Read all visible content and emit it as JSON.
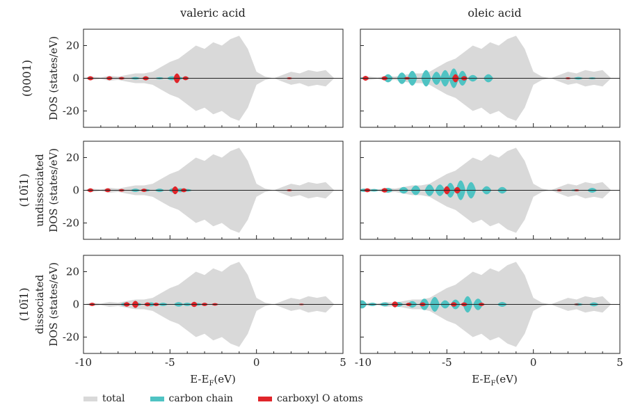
{
  "chart_data": {
    "type": "area",
    "columns": [
      "valeric acid",
      "oleic acid"
    ],
    "rows": [
      {
        "label": "(0001)",
        "label2": ""
      },
      {
        "label": "(10ī1)",
        "label2": "undissociated"
      },
      {
        "label": "(10ī1)",
        "label2": "dissociated"
      }
    ],
    "ylabel": "DOS (states/eV)",
    "xlabel": "E-E",
    "xlabel_sub": "F",
    "xlabel_unit": "(eV)",
    "xlim": [
      -10,
      5
    ],
    "ylim": [
      -30,
      30
    ],
    "xticks": [
      "-10",
      "-5",
      "0",
      "5"
    ],
    "yticks": [
      "20",
      "0",
      "-20"
    ],
    "legend_placement": "bottom",
    "series": [
      {
        "name": "total",
        "color": "#d9d9d9"
      },
      {
        "name": "carbon chain",
        "color": "#4fc3c3"
      },
      {
        "name": "carboxyl O atoms",
        "color": "#e0252a"
      }
    ],
    "total_dos": {
      "x": [
        -10,
        -9.5,
        -9,
        -8.5,
        -8,
        -7.5,
        -7,
        -6.5,
        -6,
        -5.5,
        -5,
        -4.5,
        -4,
        -3.5,
        -3,
        -2.5,
        -2,
        -1.5,
        -1,
        -0.5,
        0,
        0.5,
        1,
        1.5,
        2,
        2.5,
        3,
        3.5,
        4,
        4.5
      ],
      "y": [
        0,
        1,
        0.5,
        1.5,
        1,
        2,
        3,
        3,
        4,
        7,
        10,
        12,
        16,
        20,
        18,
        22,
        20,
        24,
        26,
        18,
        4,
        1,
        0,
        2,
        4,
        3,
        5,
        4,
        5,
        0
      ]
    },
    "panels": [
      {
        "col": 0,
        "row": 0,
        "carbon": [
          [
            -9.6,
            0.5
          ],
          [
            -7,
            0.8
          ],
          [
            -6.4,
            0.6
          ],
          [
            -5.6,
            0.7
          ],
          [
            -4.9,
            1.2
          ],
          [
            -4.5,
            1
          ],
          [
            -4.1,
            0.6
          ]
        ],
        "carboxyl": [
          [
            -9.6,
            1.3
          ],
          [
            -8.5,
            1.2
          ],
          [
            -7.8,
            0.8
          ],
          [
            -6.4,
            1.3
          ],
          [
            -4.6,
            3
          ],
          [
            -4.1,
            1.2
          ],
          [
            1.9,
            0.6
          ]
        ]
      },
      {
        "col": 1,
        "row": 0,
        "carbon": [
          [
            -9.8,
            0.6
          ],
          [
            -8.4,
            2.5
          ],
          [
            -7.6,
            3.5
          ],
          [
            -7,
            4.5
          ],
          [
            -6.2,
            5
          ],
          [
            -5.6,
            4
          ],
          [
            -5.1,
            5
          ],
          [
            -4.6,
            6
          ],
          [
            -4.1,
            4.5
          ],
          [
            -3.5,
            2
          ],
          [
            -2.6,
            2.5
          ],
          [
            2.6,
            0.8
          ],
          [
            3.4,
            0.6
          ]
        ],
        "carboxyl": [
          [
            -9.7,
            1.5
          ],
          [
            -8.6,
            1.3
          ],
          [
            -7.3,
            0.8
          ],
          [
            -4.5,
            2.5
          ],
          [
            -4,
            1.4
          ],
          [
            2.0,
            0.6
          ]
        ]
      },
      {
        "col": 0,
        "row": 1,
        "carbon": [
          [
            -9.6,
            0.5
          ],
          [
            -7,
            1
          ],
          [
            -6.4,
            0.8
          ],
          [
            -5.6,
            1
          ],
          [
            -4.8,
            1.4
          ],
          [
            -4.4,
            1.2
          ],
          [
            -4,
            0.8
          ]
        ],
        "carboxyl": [
          [
            -9.6,
            1.2
          ],
          [
            -8.6,
            1.2
          ],
          [
            -7.8,
            0.8
          ],
          [
            -6.5,
            1
          ],
          [
            -4.7,
            2.4
          ],
          [
            -4.2,
            1.2
          ],
          [
            1.9,
            0.6
          ]
        ]
      },
      {
        "col": 1,
        "row": 1,
        "carbon": [
          [
            -9.8,
            1
          ],
          [
            -9.2,
            0.8
          ],
          [
            -8.4,
            1.5
          ],
          [
            -7.5,
            2
          ],
          [
            -6.8,
            3
          ],
          [
            -6,
            3.5
          ],
          [
            -5.4,
            3.5
          ],
          [
            -4.8,
            4.5
          ],
          [
            -4.2,
            6
          ],
          [
            -3.6,
            5
          ],
          [
            -2.7,
            2.5
          ],
          [
            -1.8,
            2
          ],
          [
            2.4,
            0.6
          ],
          [
            3.4,
            1.5
          ]
        ],
        "carboxyl": [
          [
            -9.6,
            1.2
          ],
          [
            -8.6,
            1.4
          ],
          [
            -5,
            2.5
          ],
          [
            -4.4,
            2
          ],
          [
            1.5,
            0.6
          ],
          [
            2.5,
            0.6
          ]
        ]
      },
      {
        "col": 0,
        "row": 2,
        "carbon": [
          [
            -7.6,
            1
          ],
          [
            -6.9,
            1
          ],
          [
            -6.1,
            1.2
          ],
          [
            -5.4,
            1
          ],
          [
            -4.5,
            1.4
          ],
          [
            -4,
            1
          ],
          [
            -3.4,
            0.8
          ]
        ],
        "carboxyl": [
          [
            -9.5,
            1
          ],
          [
            -7.5,
            1.4
          ],
          [
            -7,
            2.2
          ],
          [
            -6.3,
            1.2
          ],
          [
            -5.8,
            1
          ],
          [
            -3.6,
            1.6
          ],
          [
            -3,
            1
          ],
          [
            -2.4,
            0.8
          ],
          [
            2.6,
            0.5
          ]
        ]
      },
      {
        "col": 1,
        "row": 2,
        "carbon": [
          [
            -9.9,
            2.5
          ],
          [
            -9.3,
            1
          ],
          [
            -8.6,
            1.2
          ],
          [
            -7.8,
            1.5
          ],
          [
            -7,
            2
          ],
          [
            -6.3,
            3.5
          ],
          [
            -5.7,
            4.5
          ],
          [
            -5.1,
            2.5
          ],
          [
            -4.5,
            3
          ],
          [
            -3.8,
            5
          ],
          [
            -3.2,
            3.5
          ],
          [
            -1.8,
            1.5
          ],
          [
            2.6,
            0.8
          ],
          [
            3.5,
            1.2
          ]
        ],
        "carboxyl": [
          [
            -8,
            1.8
          ],
          [
            -7.2,
            1
          ],
          [
            -6.4,
            1.2
          ],
          [
            -4.6,
            1.4
          ],
          [
            -4,
            1.2
          ],
          [
            -3,
            1
          ],
          [
            2.5,
            0.5
          ]
        ]
      }
    ]
  }
}
